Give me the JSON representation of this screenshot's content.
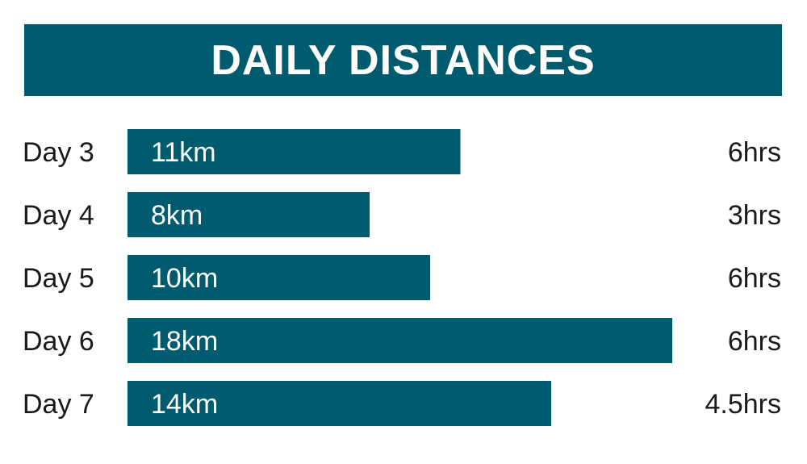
{
  "chart_data": {
    "type": "bar",
    "orientation": "horizontal",
    "title": "DAILY DISTANCES",
    "categories": [
      "Day 3",
      "Day 4",
      "Day 5",
      "Day 6",
      "Day 7"
    ],
    "values": [
      11,
      8,
      10,
      18,
      14
    ],
    "value_labels": [
      "11km",
      "8km",
      "10km",
      "18km",
      "14km"
    ],
    "right_labels": [
      "6hrs",
      "3hrs",
      "6hrs",
      "6hrs",
      "4.5hrs"
    ],
    "unit": "km",
    "grid": false,
    "bar_color": "#005b6e",
    "title_background": "#005b6e"
  }
}
